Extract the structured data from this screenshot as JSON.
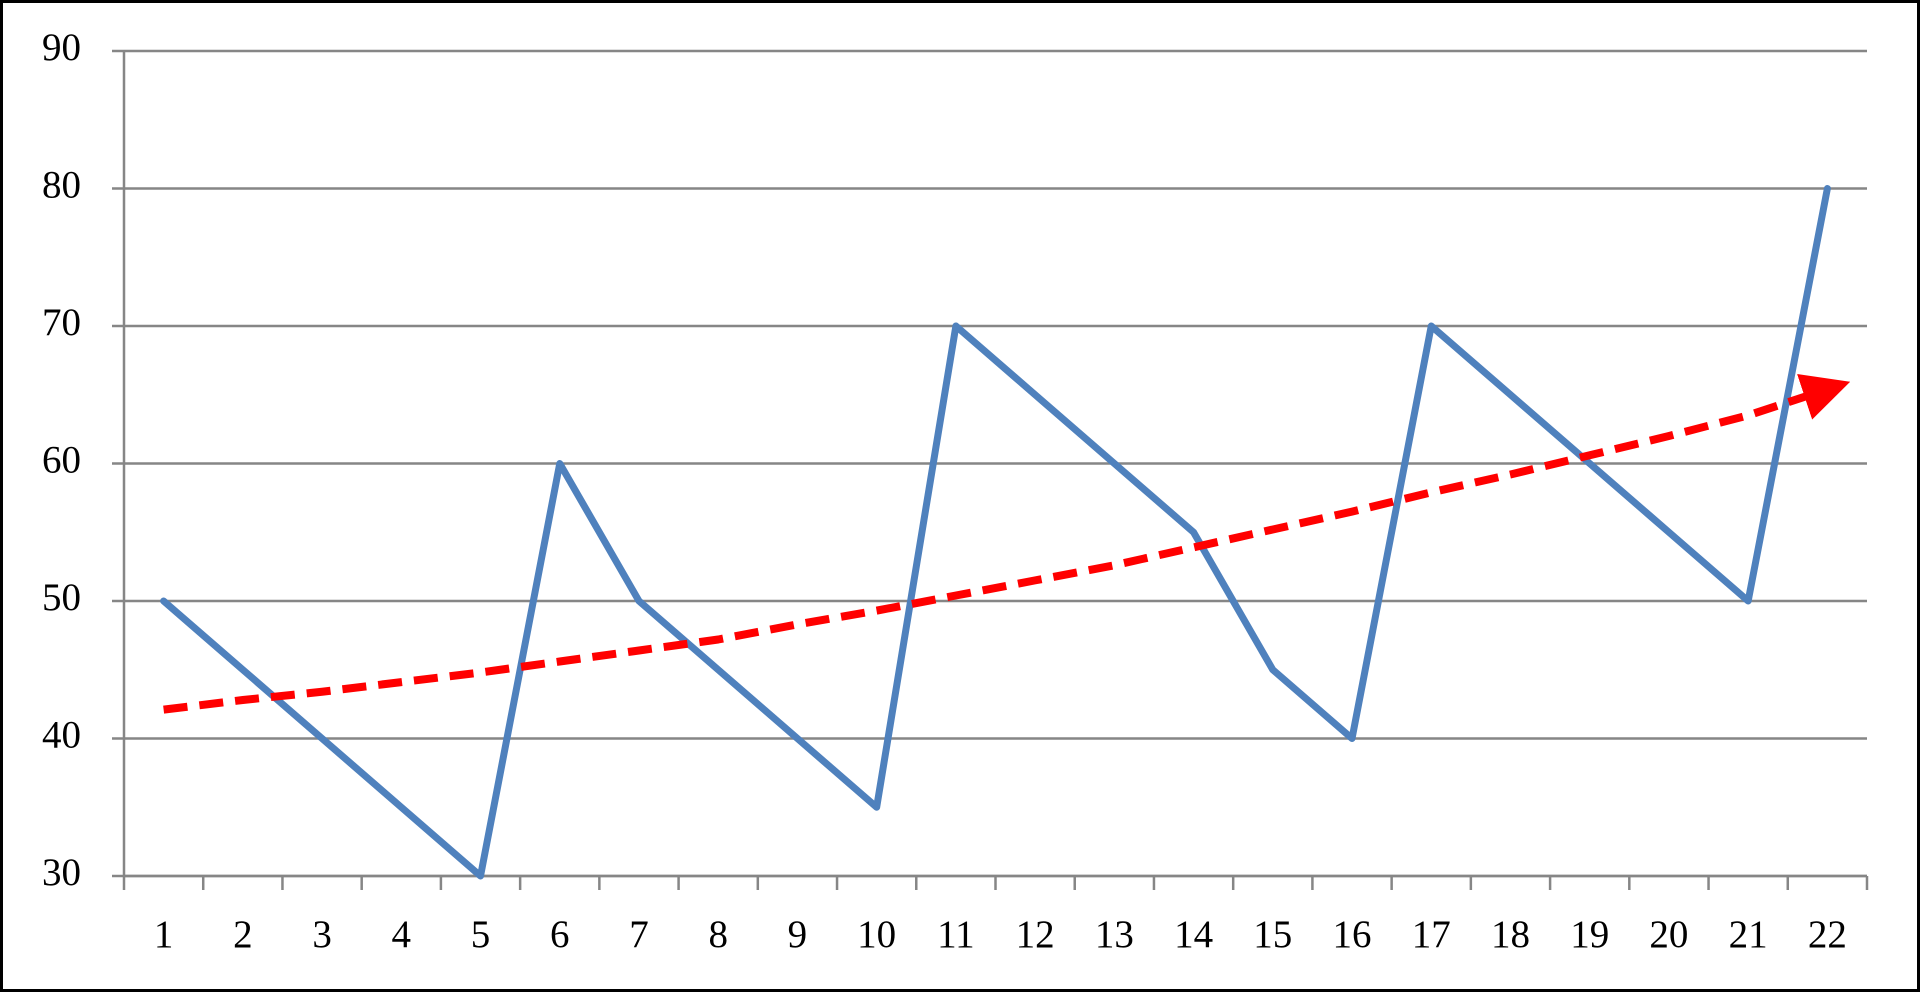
{
  "chart_data": {
    "type": "line",
    "categories": [
      "1",
      "2",
      "3",
      "4",
      "5",
      "6",
      "7",
      "8",
      "9",
      "10",
      "11",
      "12",
      "13",
      "14",
      "15",
      "16",
      "17",
      "18",
      "19",
      "20",
      "21",
      "22"
    ],
    "series": [
      {
        "color": "#4f81bd",
        "values": [
          50,
          45,
          40,
          35,
          30,
          60,
          50,
          45,
          40,
          35,
          70,
          65,
          60,
          55,
          45,
          40,
          70,
          65,
          60,
          55,
          50,
          80
        ]
      },
      {
        "color": "#ff0000",
        "dashed": true,
        "arrow": true,
        "values": [
          42.1,
          42.8,
          43.4,
          44.1,
          44.8,
          45.6,
          46.4,
          47.2,
          48.3,
          49.3,
          50.4,
          51.5,
          52.6,
          53.9,
          55.2,
          56.5,
          57.9,
          59.2,
          60.6,
          62.0,
          63.5,
          65.4
        ]
      }
    ],
    "ylim": [
      30,
      90
    ],
    "yticks": [
      30,
      40,
      50,
      60,
      70,
      80,
      90
    ],
    "grid": true
  }
}
